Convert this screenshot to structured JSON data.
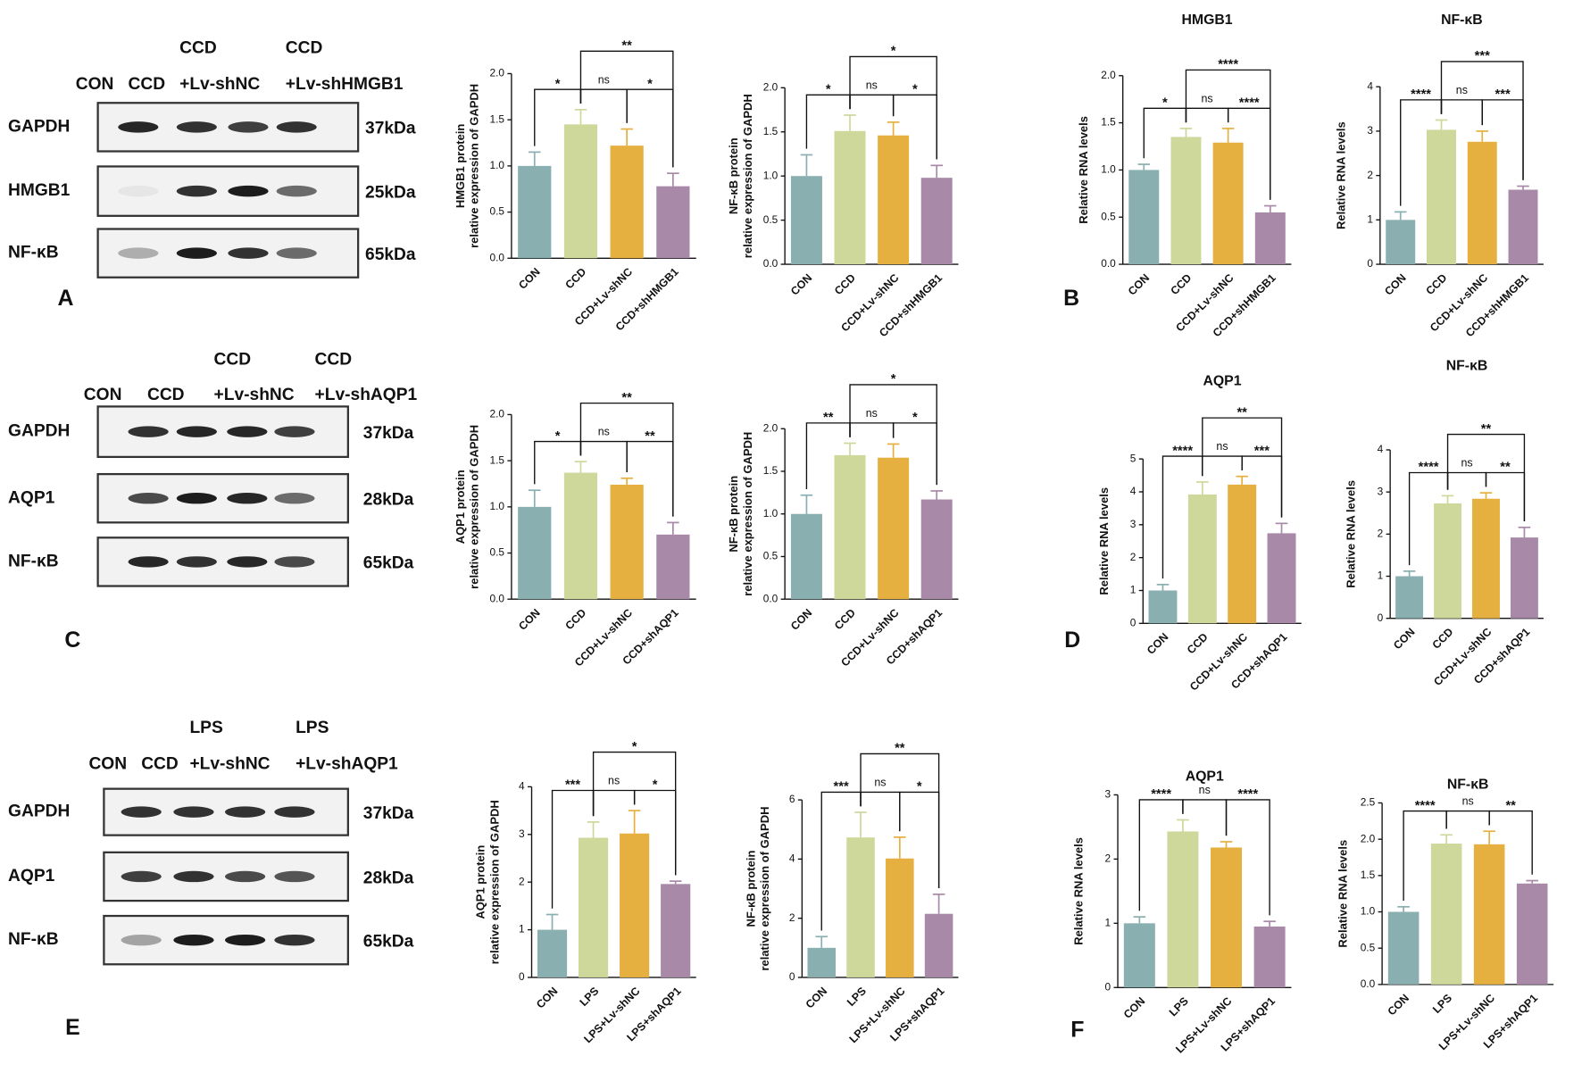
{
  "panel_labels": [
    "A",
    "B",
    "C",
    "D",
    "E",
    "F"
  ],
  "blots": [
    {
      "header": [
        [
          "CON"
        ],
        [
          "CCD"
        ],
        [
          "CCD",
          "+Lv-shNC"
        ],
        [
          "CCD",
          "+Lv-shHMGB1"
        ]
      ],
      "rows": [
        {
          "protein": "GAPDH",
          "size": "37kDa"
        },
        {
          "protein": "HMGB1",
          "size": "25kDa"
        },
        {
          "protein": "NF-κB",
          "size": "65kDa"
        }
      ]
    },
    {
      "header": [
        [
          "CON"
        ],
        [
          "CCD"
        ],
        [
          "CCD",
          "+Lv-shNC"
        ],
        [
          "CCD",
          "+Lv-shAQP1"
        ]
      ],
      "rows": [
        {
          "protein": "GAPDH",
          "size": "37kDa"
        },
        {
          "protein": "AQP1",
          "size": "28kDa"
        },
        {
          "protein": "NF-κB",
          "size": "65kDa"
        }
      ]
    },
    {
      "header": [
        [
          "CON"
        ],
        [
          "CCD"
        ],
        [
          "LPS",
          "+Lv-shNC"
        ],
        [
          "LPS",
          "+Lv-shAQP1"
        ]
      ],
      "rows": [
        {
          "protein": "GAPDH",
          "size": "37kDa"
        },
        {
          "protein": "AQP1",
          "size": "28kDa"
        },
        {
          "protein": "NF-κB",
          "size": "65kDa"
        }
      ]
    }
  ],
  "chart_data": [
    {
      "type": "bar",
      "y_label": [
        "HMGB1 protein",
        "relative expression of GAPDH"
      ],
      "categories": [
        "CON",
        "CCD",
        "CCD+Lv-shNC",
        "CCD+shHMGB1"
      ],
      "values": [
        1.0,
        1.45,
        1.22,
        0.78
      ],
      "errors": [
        0.15,
        0.16,
        0.18,
        0.14
      ],
      "colors": [
        "#8aafb0",
        "#cdd89a",
        "#e6b040",
        "#a889a8"
      ],
      "ylim": [
        0,
        2
      ],
      "yticks": [
        {
          "value": 0,
          "label": "0.0"
        },
        {
          "value": 0.5,
          "label": "0.5"
        },
        {
          "value": 1,
          "label": "1.0"
        },
        {
          "value": 1.5,
          "label": "1.5"
        },
        {
          "value": 2,
          "label": "2.0"
        }
      ],
      "annotations": [
        {
          "text": "*",
          "between": [
            "CON",
            "CCD"
          ]
        },
        {
          "text": "ns",
          "between": [
            "CCD",
            "CCD+Lv-shNC"
          ]
        },
        {
          "text": "*",
          "between": [
            "CCD+Lv-shNC",
            "CCD+shHMGB1"
          ]
        },
        {
          "text": "**",
          "between": [
            "CCD",
            "CCD+shHMGB1"
          ]
        }
      ]
    },
    {
      "type": "bar",
      "y_label": [
        "NF-κB protein",
        "relative expression of GAPDH"
      ],
      "categories": [
        "CON",
        "CCD",
        "CCD+Lv-shNC",
        "CCD+shHMGB1"
      ],
      "values": [
        1.0,
        1.51,
        1.46,
        0.98
      ],
      "errors": [
        0.24,
        0.18,
        0.15,
        0.14
      ],
      "colors": [
        "#8aafb0",
        "#cdd89a",
        "#e6b040",
        "#a889a8"
      ],
      "ylim": [
        0,
        2
      ],
      "yticks": [
        {
          "value": 0,
          "label": "0.0"
        },
        {
          "value": 0.5,
          "label": "0.5"
        },
        {
          "value": 1,
          "label": "1.0"
        },
        {
          "value": 1.5,
          "label": "1.5"
        },
        {
          "value": 2,
          "label": "2.0"
        }
      ],
      "annotations": [
        {
          "text": "*",
          "between": [
            "CON",
            "CCD"
          ]
        },
        {
          "text": "ns",
          "between": [
            "CCD",
            "CCD+Lv-shNC"
          ]
        },
        {
          "text": "*",
          "between": [
            "CCD+Lv-shNC",
            "CCD+shHMGB1"
          ]
        },
        {
          "text": "*",
          "between": [
            "CCD",
            "CCD+shHMGB1"
          ]
        }
      ]
    },
    {
      "type": "bar",
      "title": "HMGB1",
      "y_label": "Relative RNA levels",
      "categories": [
        "CON",
        "CCD",
        "CCD+Lv-shNC",
        "CCD+shHMGB1"
      ],
      "values": [
        1.0,
        1.35,
        1.29,
        0.55
      ],
      "errors": [
        0.06,
        0.09,
        0.15,
        0.07
      ],
      "colors": [
        "#8aafb0",
        "#cdd89a",
        "#e6b040",
        "#a889a8"
      ],
      "ylim": [
        0,
        2
      ],
      "yticks": [
        {
          "value": 0,
          "label": "0.0"
        },
        {
          "value": 0.5,
          "label": "0.5"
        },
        {
          "value": 1,
          "label": "1.0"
        },
        {
          "value": 1.5,
          "label": "1.5"
        },
        {
          "value": 2,
          "label": "2.0"
        }
      ],
      "annotations": [
        {
          "text": "*",
          "between": [
            "CON",
            "CCD"
          ]
        },
        {
          "text": "ns",
          "between": [
            "CCD",
            "CCD+Lv-shNC"
          ]
        },
        {
          "text": "****",
          "between": [
            "CCD+Lv-shNC",
            "CCD+shHMGB1"
          ]
        },
        {
          "text": "****",
          "between": [
            "CCD",
            "CCD+shHMGB1"
          ]
        }
      ]
    },
    {
      "type": "bar",
      "title": "NF-κB",
      "y_label": "Relative RNA levels",
      "categories": [
        "CON",
        "CCD",
        "CCD+Lv-shNC",
        "CCD+shHMGB1"
      ],
      "values": [
        1.0,
        3.03,
        2.76,
        1.68
      ],
      "errors": [
        0.18,
        0.22,
        0.24,
        0.08
      ],
      "colors": [
        "#8aafb0",
        "#cdd89a",
        "#e6b040",
        "#a889a8"
      ],
      "ylim": [
        0,
        4
      ],
      "yticks": [
        0,
        1,
        2,
        3,
        4
      ],
      "annotations": [
        {
          "text": "****",
          "between": [
            "CON",
            "CCD"
          ]
        },
        {
          "text": "ns",
          "between": [
            "CCD",
            "CCD+Lv-shNC"
          ]
        },
        {
          "text": "***",
          "between": [
            "CCD+Lv-shNC",
            "CCD+shHMGB1"
          ]
        },
        {
          "text": "***",
          "between": [
            "CCD",
            "CCD+shHMGB1"
          ]
        }
      ]
    },
    {
      "type": "bar",
      "y_label": [
        "AQP1 protein",
        "relative expression of GAPDH"
      ],
      "categories": [
        "CON",
        "CCD",
        "CCD+Lv-shNC",
        "CCD+shAQP1"
      ],
      "values": [
        1.0,
        1.37,
        1.24,
        0.7
      ],
      "errors": [
        0.18,
        0.12,
        0.07,
        0.13
      ],
      "colors": [
        "#8aafb0",
        "#cdd89a",
        "#e6b040",
        "#a889a8"
      ],
      "ylim": [
        0,
        2
      ],
      "yticks": [
        {
          "value": 0,
          "label": "0.0"
        },
        {
          "value": 0.5,
          "label": "0.5"
        },
        {
          "value": 1,
          "label": "1.0"
        },
        {
          "value": 1.5,
          "label": "1.5"
        },
        {
          "value": 2,
          "label": "2.0"
        }
      ],
      "annotations": [
        {
          "text": "*",
          "between": [
            "CON",
            "CCD"
          ]
        },
        {
          "text": "ns",
          "between": [
            "CCD",
            "CCD+Lv-shNC"
          ]
        },
        {
          "text": "**",
          "between": [
            "CCD+Lv-shNC",
            "CCD+shAQP1"
          ]
        },
        {
          "text": "**",
          "between": [
            "CCD",
            "CCD+shAQP1"
          ]
        }
      ]
    },
    {
      "type": "bar",
      "y_label": [
        "NF-κB protein",
        "relative expression of GAPDH"
      ],
      "categories": [
        "CON",
        "CCD",
        "CCD+Lv-shNC",
        "CCD+shAQP1"
      ],
      "values": [
        1.0,
        1.69,
        1.66,
        1.17
      ],
      "errors": [
        0.22,
        0.14,
        0.16,
        0.1
      ],
      "colors": [
        "#8aafb0",
        "#cdd89a",
        "#e6b040",
        "#a889a8"
      ],
      "ylim": [
        0,
        2
      ],
      "yticks": [
        {
          "value": 0,
          "label": "0.0"
        },
        {
          "value": 0.5,
          "label": "0.5"
        },
        {
          "value": 1,
          "label": "1.0"
        },
        {
          "value": 1.5,
          "label": "1.5"
        },
        {
          "value": 2,
          "label": "2.0"
        }
      ],
      "annotations": [
        {
          "text": "**",
          "between": [
            "CON",
            "CCD"
          ]
        },
        {
          "text": "ns",
          "between": [
            "CCD",
            "CCD+Lv-shNC"
          ]
        },
        {
          "text": "*",
          "between": [
            "CCD+Lv-shNC",
            "CCD+shAQP1"
          ]
        },
        {
          "text": "*",
          "between": [
            "CCD",
            "CCD+shAQP1"
          ]
        }
      ]
    },
    {
      "type": "bar",
      "title": "AQP1",
      "y_label": "Relative RNA levels",
      "categories": [
        "CON",
        "CCD",
        "CCD+Lv-shNC",
        "CCD+shAQP1"
      ],
      "values": [
        1.0,
        3.92,
        4.22,
        2.74
      ],
      "errors": [
        0.18,
        0.38,
        0.25,
        0.3
      ],
      "colors": [
        "#8aafb0",
        "#cdd89a",
        "#e6b040",
        "#a889a8"
      ],
      "ylim": [
        0,
        5
      ],
      "yticks": [
        0,
        1,
        2,
        3,
        4,
        5
      ],
      "annotations": [
        {
          "text": "****",
          "between": [
            "CON",
            "CCD"
          ]
        },
        {
          "text": "ns",
          "between": [
            "CCD",
            "CCD+Lv-shNC"
          ]
        },
        {
          "text": "***",
          "between": [
            "CCD+Lv-shNC",
            "CCD+shAQP1"
          ]
        },
        {
          "text": "**",
          "between": [
            "CCD",
            "CCD+shAQP1"
          ]
        }
      ]
    },
    {
      "type": "bar",
      "title": "NF-κB",
      "y_label": "Relative RNA levels",
      "categories": [
        "CON",
        "CCD",
        "CCD+Lv-shNC",
        "CCD+shAQP1"
      ],
      "values": [
        1.0,
        2.73,
        2.84,
        1.92
      ],
      "errors": [
        0.12,
        0.18,
        0.14,
        0.24
      ],
      "colors": [
        "#8aafb0",
        "#cdd89a",
        "#e6b040",
        "#a889a8"
      ],
      "ylim": [
        0,
        4
      ],
      "yticks": [
        0,
        1,
        2,
        3,
        4
      ],
      "annotations": [
        {
          "text": "****",
          "between": [
            "CON",
            "CCD"
          ]
        },
        {
          "text": "ns",
          "between": [
            "CCD",
            "CCD+Lv-shNC"
          ]
        },
        {
          "text": "**",
          "between": [
            "CCD+Lv-shNC",
            "CCD+shAQP1"
          ]
        },
        {
          "text": "**",
          "between": [
            "CCD",
            "CCD+shAQP1"
          ]
        }
      ]
    },
    {
      "type": "bar",
      "y_label": [
        "AQP1 protein",
        "relative expression of GAPDH"
      ],
      "categories": [
        "CON",
        "LPS",
        "LPS+Lv-shNC",
        "LPS+shAQP1"
      ],
      "values": [
        1.0,
        2.93,
        3.02,
        1.96
      ],
      "errors": [
        0.32,
        0.33,
        0.48,
        0.06
      ],
      "colors": [
        "#8aafb0",
        "#cdd89a",
        "#e6b040",
        "#a889a8"
      ],
      "ylim": [
        0,
        4
      ],
      "yticks": [
        0,
        1,
        2,
        3,
        4
      ],
      "annotations": [
        {
          "text": "***",
          "between": [
            "CON",
            "LPS"
          ]
        },
        {
          "text": "ns",
          "between": [
            "LPS",
            "LPS+Lv-shNC"
          ]
        },
        {
          "text": "*",
          "between": [
            "LPS+Lv-shNC",
            "LPS+shAQP1"
          ]
        },
        {
          "text": "*",
          "between": [
            "LPS",
            "LPS+shAQP1"
          ]
        }
      ]
    },
    {
      "type": "bar",
      "y_label": [
        "NF-κB protein",
        "relative expression of GAPDH"
      ],
      "categories": [
        "CON",
        "LPS",
        "LPS+Lv-shNC",
        "LPS+shAQP1"
      ],
      "values": [
        1.0,
        4.73,
        4.02,
        2.15
      ],
      "errors": [
        0.38,
        0.85,
        0.72,
        0.66
      ],
      "colors": [
        "#8aafb0",
        "#cdd89a",
        "#e6b040",
        "#a889a8"
      ],
      "ylim": [
        0,
        6
      ],
      "yticks": [
        0,
        2,
        4,
        6
      ],
      "annotations": [
        {
          "text": "***",
          "between": [
            "CON",
            "LPS"
          ]
        },
        {
          "text": "ns",
          "between": [
            "LPS",
            "LPS+Lv-shNC"
          ]
        },
        {
          "text": "*",
          "between": [
            "LPS+Lv-shNC",
            "LPS+shAQP1"
          ]
        },
        {
          "text": "**",
          "between": [
            "LPS",
            "LPS+shAQP1"
          ]
        }
      ]
    },
    {
      "type": "bar",
      "title": "AQP1",
      "y_label": "Relative RNA levels",
      "categories": [
        "CON",
        "LPS",
        "LPS+Lv-shNC",
        "LPS+shAQP1"
      ],
      "values": [
        1.0,
        2.43,
        2.18,
        0.95
      ],
      "errors": [
        0.1,
        0.18,
        0.09,
        0.08
      ],
      "colors": [
        "#8aafb0",
        "#cdd89a",
        "#e6b040",
        "#a889a8"
      ],
      "ylim": [
        0,
        3
      ],
      "yticks": [
        0,
        1,
        2,
        3
      ],
      "annotations": [
        {
          "text": "****",
          "between": [
            "CON",
            "LPS"
          ]
        },
        {
          "text": "ns",
          "between": [
            "LPS",
            "LPS+Lv-shNC"
          ]
        },
        {
          "text": "****",
          "between": [
            "LPS+Lv-shNC",
            "LPS+shAQP1"
          ]
        }
      ]
    },
    {
      "type": "bar",
      "title": "NF-κB",
      "y_label": "Relative RNA levels",
      "categories": [
        "CON",
        "LPS",
        "LPS+Lv-shNC",
        "LPS+shAQP1"
      ],
      "values": [
        1.0,
        1.94,
        1.93,
        1.39
      ],
      "errors": [
        0.07,
        0.12,
        0.18,
        0.04
      ],
      "colors": [
        "#8aafb0",
        "#cdd89a",
        "#e6b040",
        "#a889a8"
      ],
      "ylim": [
        0,
        2.5
      ],
      "yticks": [
        {
          "value": 0,
          "label": "0.0"
        },
        {
          "value": 0.5,
          "label": "0.5"
        },
        {
          "value": 1,
          "label": "1.0"
        },
        {
          "value": 1.5,
          "label": "1.5"
        },
        {
          "value": 2,
          "label": "2.0"
        },
        {
          "value": 2.5,
          "label": "2.5"
        }
      ],
      "annotations": [
        {
          "text": "****",
          "between": [
            "CON",
            "LPS"
          ]
        },
        {
          "text": "ns",
          "between": [
            "LPS",
            "LPS+Lv-shNC"
          ]
        },
        {
          "text": "**",
          "between": [
            "LPS+Lv-shNC",
            "LPS+shAQP1"
          ]
        }
      ]
    }
  ]
}
